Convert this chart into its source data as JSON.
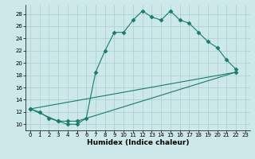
{
  "xlabel": "Humidex (Indice chaleur)",
  "background_color": "#cce8e8",
  "line_color": "#1a7a6e",
  "xlim": [
    -0.5,
    23.5
  ],
  "ylim": [
    9,
    29.5
  ],
  "xticks": [
    0,
    1,
    2,
    3,
    4,
    5,
    6,
    7,
    8,
    9,
    10,
    11,
    12,
    13,
    14,
    15,
    16,
    17,
    18,
    19,
    20,
    21,
    22,
    23
  ],
  "yticks": [
    10,
    12,
    14,
    16,
    18,
    20,
    22,
    24,
    26,
    28
  ],
  "line1_x": [
    0,
    1,
    2,
    3,
    4,
    5,
    6,
    7,
    8,
    9,
    10,
    11,
    12,
    13,
    14,
    15,
    16,
    17,
    18,
    19,
    20,
    21,
    22
  ],
  "line1_y": [
    12.5,
    12,
    11,
    10.5,
    10,
    10,
    11,
    18.5,
    22,
    25,
    25,
    27,
    28.5,
    27.5,
    27,
    28.5,
    27,
    26.5,
    25,
    23.5,
    22.5,
    20.5,
    19
  ],
  "line2_x": [
    0,
    3,
    4,
    5,
    22
  ],
  "line2_y": [
    12.5,
    10.5,
    10.5,
    10.5,
    18.5
  ],
  "line3_x": [
    0,
    22
  ],
  "line3_y": [
    12.5,
    18.5
  ],
  "grid_color": "#aacece",
  "marker": "D",
  "markersize": 2.5,
  "linewidth": 0.8,
  "xlabel_fontsize": 6.5,
  "tick_fontsize": 5.0
}
